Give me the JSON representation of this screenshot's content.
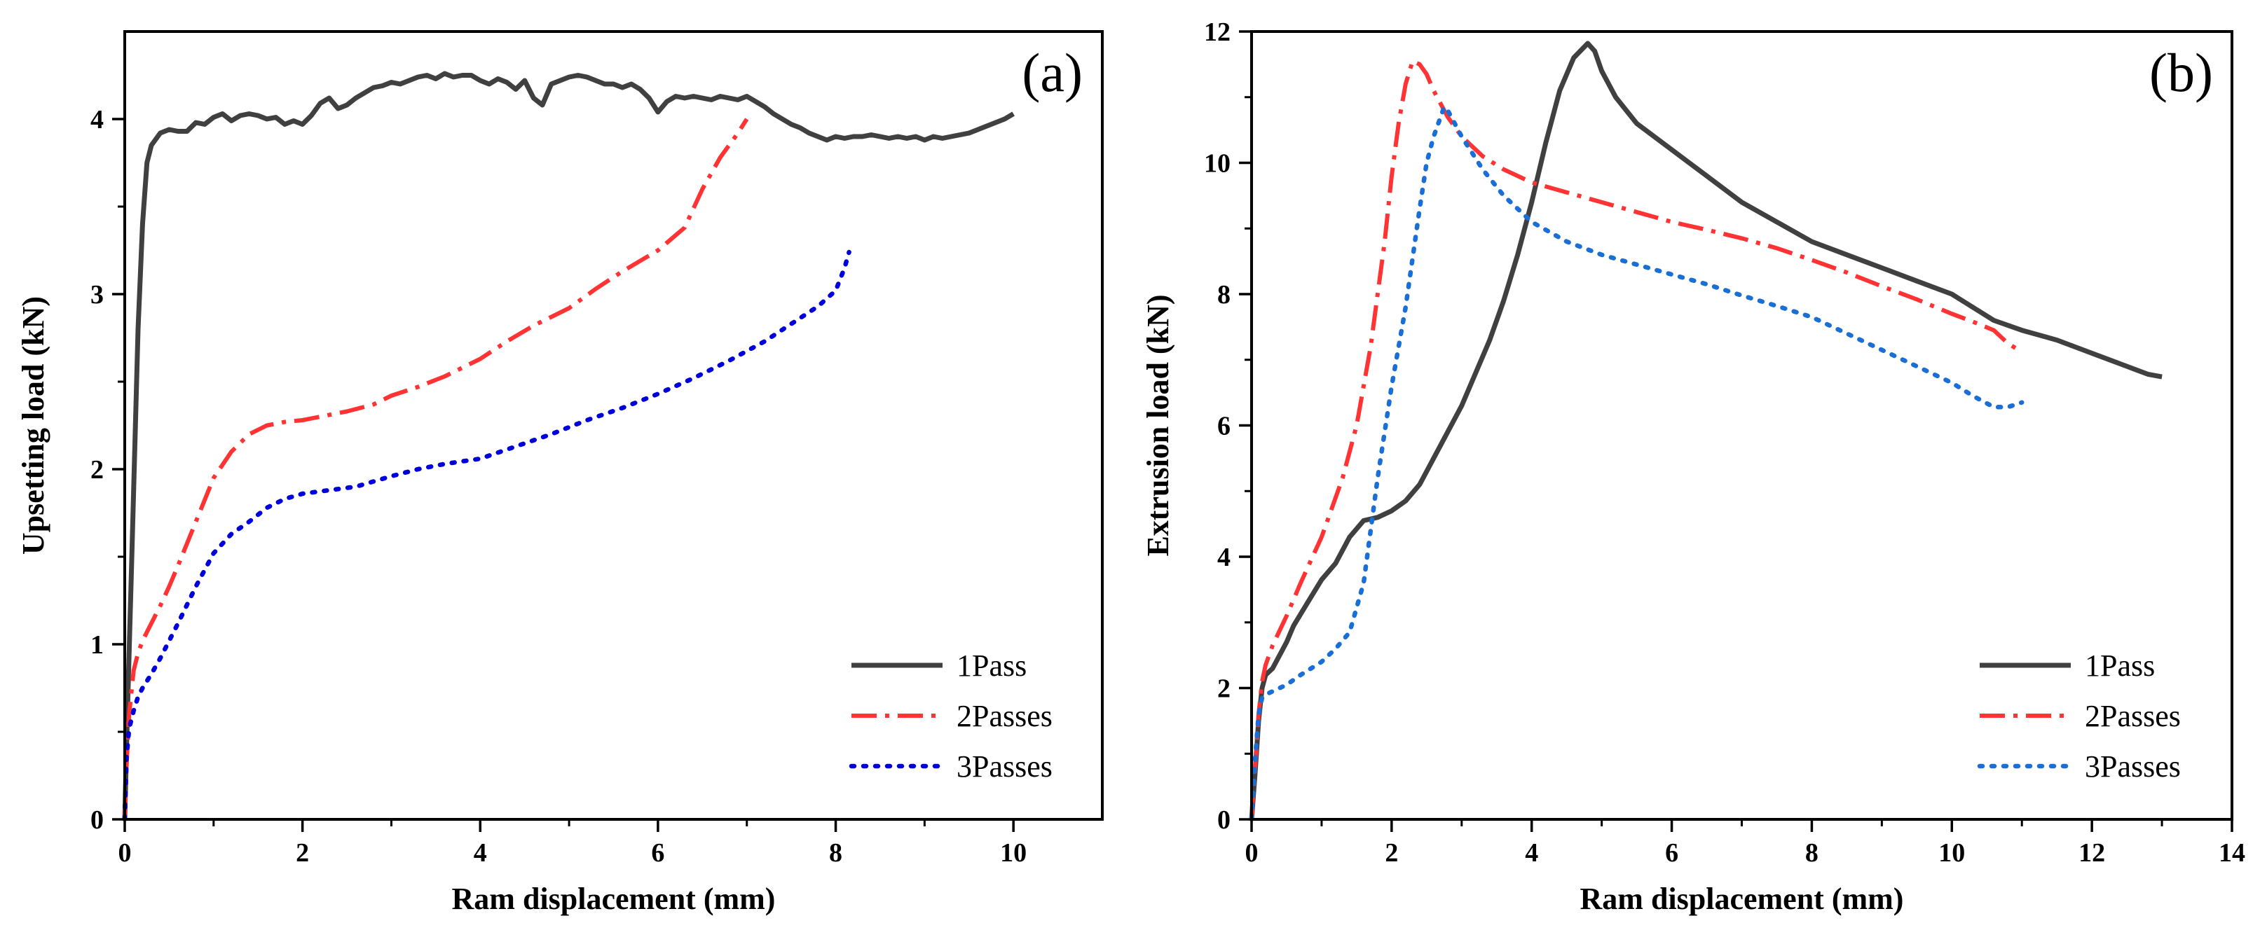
{
  "chart_data": [
    {
      "type": "line",
      "panel_label": "(a)",
      "xlabel": "Ram displacement (mm)",
      "ylabel": "Upsetting load (kN)",
      "xlim": [
        0,
        11
      ],
      "ylim": [
        0,
        4.5
      ],
      "xticks": [
        0,
        2,
        4,
        6,
        8,
        10
      ],
      "yticks": [
        0,
        1,
        2,
        3,
        4
      ],
      "legend_position": "bottom-right",
      "series": [
        {
          "name": "1Pass",
          "color": "#404040",
          "style": "solid",
          "x": [
            0,
            0.03,
            0.08,
            0.15,
            0.2,
            0.25,
            0.3,
            0.4,
            0.5,
            0.6,
            0.7,
            0.8,
            0.9,
            1.0,
            1.1,
            1.2,
            1.3,
            1.4,
            1.5,
            1.6,
            1.7,
            1.8,
            1.9,
            2.0,
            2.1,
            2.2,
            2.3,
            2.4,
            2.5,
            2.6,
            2.7,
            2.8,
            2.9,
            3.0,
            3.1,
            3.2,
            3.3,
            3.4,
            3.5,
            3.6,
            3.7,
            3.8,
            3.9,
            4.0,
            4.1,
            4.2,
            4.3,
            4.4,
            4.5,
            4.6,
            4.7,
            4.8,
            4.9,
            5.0,
            5.1,
            5.2,
            5.3,
            5.4,
            5.5,
            5.6,
            5.7,
            5.8,
            5.9,
            6.0,
            6.1,
            6.2,
            6.3,
            6.4,
            6.5,
            6.6,
            6.7,
            6.8,
            6.9,
            7.0,
            7.1,
            7.2,
            7.3,
            7.4,
            7.5,
            7.6,
            7.7,
            7.8,
            7.9,
            8.0,
            8.1,
            8.2,
            8.3,
            8.4,
            8.5,
            8.6,
            8.7,
            8.8,
            8.9,
            9.0,
            9.1,
            9.2,
            9.3,
            9.4,
            9.5,
            9.6,
            9.7,
            9.8,
            9.9,
            10.0
          ],
          "y": [
            0,
            0.6,
            1.5,
            2.8,
            3.4,
            3.75,
            3.85,
            3.92,
            3.94,
            3.93,
            3.93,
            3.98,
            3.97,
            4.01,
            4.03,
            3.99,
            4.02,
            4.03,
            4.02,
            4.0,
            4.01,
            3.97,
            3.99,
            3.97,
            4.02,
            4.09,
            4.12,
            4.06,
            4.08,
            4.12,
            4.15,
            4.18,
            4.19,
            4.21,
            4.2,
            4.22,
            4.24,
            4.25,
            4.23,
            4.26,
            4.24,
            4.25,
            4.25,
            4.22,
            4.2,
            4.23,
            4.21,
            4.17,
            4.22,
            4.12,
            4.08,
            4.2,
            4.22,
            4.24,
            4.25,
            4.24,
            4.22,
            4.2,
            4.2,
            4.18,
            4.2,
            4.17,
            4.12,
            4.04,
            4.1,
            4.13,
            4.12,
            4.13,
            4.12,
            4.11,
            4.13,
            4.12,
            4.11,
            4.13,
            4.1,
            4.07,
            4.03,
            4.0,
            3.97,
            3.95,
            3.92,
            3.9,
            3.88,
            3.9,
            3.89,
            3.9,
            3.9,
            3.91,
            3.9,
            3.89,
            3.9,
            3.89,
            3.9,
            3.88,
            3.9,
            3.89,
            3.9,
            3.91,
            3.92,
            3.94,
            3.96,
            3.98,
            4.0,
            4.03
          ]
        },
        {
          "name": "2Passes",
          "color": "#ff3333",
          "style": "dashdot",
          "x": [
            0,
            0.02,
            0.05,
            0.1,
            0.15,
            0.2,
            0.3,
            0.4,
            0.5,
            0.6,
            0.8,
            1.0,
            1.2,
            1.4,
            1.6,
            1.8,
            2.0,
            2.2,
            2.5,
            2.8,
            3.0,
            3.3,
            3.6,
            4.0,
            4.3,
            4.6,
            5.0,
            5.3,
            5.6,
            6.0,
            6.3,
            6.5,
            6.7,
            6.9,
            7.0
          ],
          "y": [
            0,
            0.3,
            0.6,
            0.85,
            0.95,
            1.02,
            1.12,
            1.22,
            1.33,
            1.45,
            1.7,
            1.95,
            2.1,
            2.2,
            2.25,
            2.27,
            2.28,
            2.3,
            2.33,
            2.37,
            2.42,
            2.47,
            2.53,
            2.63,
            2.73,
            2.82,
            2.92,
            3.03,
            3.13,
            3.25,
            3.38,
            3.6,
            3.78,
            3.92,
            4.0
          ]
        },
        {
          "name": "3Passes",
          "color": "#0000dd",
          "style": "dotted",
          "x": [
            0,
            0.02,
            0.05,
            0.1,
            0.15,
            0.2,
            0.3,
            0.4,
            0.5,
            0.6,
            0.8,
            1.0,
            1.2,
            1.4,
            1.6,
            1.8,
            2.0,
            2.3,
            2.6,
            3.0,
            3.3,
            3.6,
            4.0,
            4.4,
            4.8,
            5.2,
            5.6,
            6.0,
            6.4,
            6.8,
            7.2,
            7.5,
            7.8,
            8.0,
            8.1,
            8.15
          ],
          "y": [
            0,
            0.35,
            0.52,
            0.62,
            0.7,
            0.75,
            0.83,
            0.92,
            1.02,
            1.12,
            1.33,
            1.52,
            1.63,
            1.7,
            1.78,
            1.83,
            1.86,
            1.88,
            1.9,
            1.96,
            2.0,
            2.03,
            2.06,
            2.13,
            2.2,
            2.28,
            2.35,
            2.43,
            2.52,
            2.62,
            2.73,
            2.83,
            2.93,
            3.02,
            3.15,
            3.24
          ]
        }
      ]
    },
    {
      "type": "line",
      "panel_label": "(b)",
      "xlabel": "Ram displacement (mm)",
      "ylabel": "Extrusion load (kN)",
      "xlim": [
        0,
        14
      ],
      "ylim": [
        0,
        12
      ],
      "xticks": [
        0,
        2,
        4,
        6,
        8,
        10,
        12,
        14
      ],
      "yticks": [
        0,
        2,
        4,
        6,
        8,
        10,
        12
      ],
      "legend_position": "bottom-right",
      "series": [
        {
          "name": "1Pass",
          "color": "#404040",
          "style": "solid",
          "x": [
            0,
            0.05,
            0.1,
            0.15,
            0.2,
            0.3,
            0.4,
            0.5,
            0.6,
            0.8,
            1.0,
            1.2,
            1.4,
            1.6,
            1.8,
            2.0,
            2.2,
            2.4,
            2.6,
            2.8,
            3.0,
            3.2,
            3.4,
            3.6,
            3.8,
            4.0,
            4.2,
            4.4,
            4.6,
            4.8,
            4.9,
            5.0,
            5.2,
            5.5,
            6.0,
            6.5,
            7.0,
            7.5,
            8.0,
            8.5,
            9.0,
            9.5,
            10.0,
            10.3,
            10.6,
            11.0,
            11.5,
            12.0,
            12.5,
            12.8,
            13.0
          ],
          "y": [
            0,
            0.7,
            1.5,
            2.0,
            2.2,
            2.3,
            2.5,
            2.7,
            2.95,
            3.3,
            3.65,
            3.9,
            4.3,
            4.55,
            4.6,
            4.7,
            4.85,
            5.1,
            5.5,
            5.9,
            6.3,
            6.8,
            7.3,
            7.9,
            8.6,
            9.4,
            10.3,
            11.1,
            11.6,
            11.82,
            11.7,
            11.4,
            11.0,
            10.6,
            10.2,
            9.8,
            9.4,
            9.1,
            8.8,
            8.6,
            8.4,
            8.2,
            8.0,
            7.8,
            7.6,
            7.45,
            7.3,
            7.1,
            6.9,
            6.78,
            6.74
          ]
        },
        {
          "name": "2Passes",
          "color": "#ff3333",
          "style": "dashdot",
          "x": [
            0,
            0.05,
            0.1,
            0.15,
            0.2,
            0.3,
            0.5,
            0.7,
            1.0,
            1.3,
            1.5,
            1.7,
            1.9,
            2.0,
            2.1,
            2.2,
            2.3,
            2.4,
            2.5,
            2.6,
            2.8,
            3.0,
            3.3,
            3.6,
            4.0,
            4.5,
            5.0,
            5.5,
            6.0,
            6.5,
            7.0,
            7.5,
            8.0,
            8.5,
            9.0,
            9.5,
            10.0,
            10.3,
            10.6,
            10.8,
            11.0
          ],
          "y": [
            0,
            0.8,
            1.6,
            2.1,
            2.35,
            2.65,
            3.1,
            3.6,
            4.3,
            5.2,
            6.0,
            7.2,
            8.8,
            9.8,
            10.6,
            11.2,
            11.55,
            11.5,
            11.35,
            11.1,
            10.7,
            10.4,
            10.1,
            9.9,
            9.7,
            9.55,
            9.4,
            9.25,
            9.1,
            8.98,
            8.85,
            8.7,
            8.52,
            8.33,
            8.12,
            7.92,
            7.7,
            7.58,
            7.45,
            7.25,
            7.12
          ]
        },
        {
          "name": "3Passes",
          "color": "#1a6fd6",
          "style": "dotted",
          "x": [
            0,
            0.05,
            0.1,
            0.15,
            0.2,
            0.3,
            0.5,
            0.7,
            1.0,
            1.2,
            1.4,
            1.6,
            1.8,
            2.0,
            2.2,
            2.4,
            2.5,
            2.6,
            2.7,
            2.75,
            2.8,
            3.0,
            3.3,
            3.6,
            4.0,
            4.5,
            5.0,
            5.5,
            6.0,
            6.5,
            7.0,
            7.5,
            8.0,
            8.5,
            9.0,
            9.5,
            10.0,
            10.3,
            10.6,
            10.8,
            11.0
          ],
          "y": [
            0,
            0.9,
            1.6,
            1.85,
            1.9,
            1.95,
            2.05,
            2.2,
            2.4,
            2.6,
            2.85,
            3.6,
            5.2,
            6.6,
            7.8,
            9.3,
            10.0,
            10.4,
            10.7,
            10.85,
            10.8,
            10.4,
            9.9,
            9.5,
            9.1,
            8.8,
            8.6,
            8.45,
            8.3,
            8.15,
            7.98,
            7.82,
            7.65,
            7.4,
            7.15,
            6.9,
            6.65,
            6.45,
            6.28,
            6.28,
            6.35
          ]
        }
      ]
    }
  ]
}
